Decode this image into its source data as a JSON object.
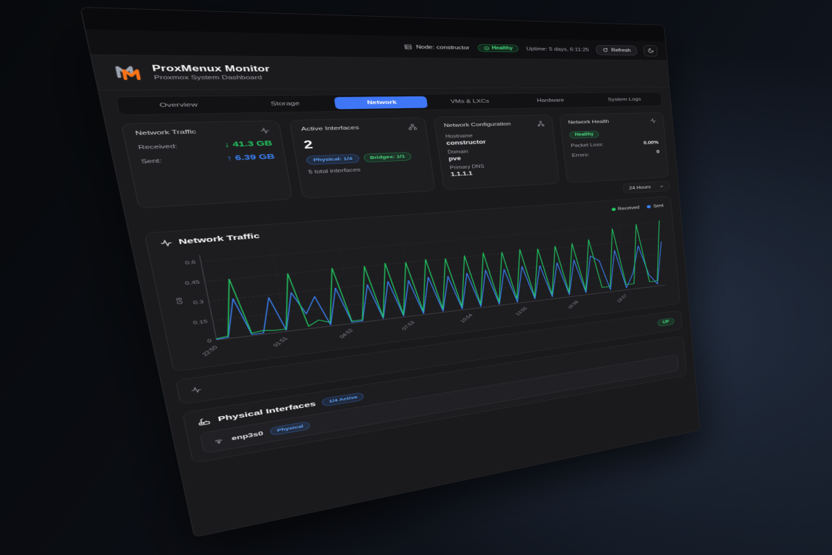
{
  "topbar": {
    "node_label": "Node: constructor",
    "health_badge": "Healthy",
    "uptime": "Uptime: 5 days, 6:11:25",
    "refresh_label": "Refresh"
  },
  "header": {
    "title": "ProxMenux Monitor",
    "subtitle": "Proxmox System Dashboard"
  },
  "tabs": [
    {
      "label": "Overview",
      "active": false
    },
    {
      "label": "Storage",
      "active": false
    },
    {
      "label": "Network",
      "active": true
    },
    {
      "label": "VMs & LXCs",
      "active": false
    },
    {
      "label": "Hardware",
      "active": false
    },
    {
      "label": "System Logs",
      "active": false
    }
  ],
  "cards": {
    "traffic": {
      "title": "Network Traffic",
      "received_label": "Received:",
      "received_value": "↓ 41.3 GB",
      "sent_label": "Sent:",
      "sent_value": "↑ 6.39 GB"
    },
    "interfaces": {
      "title": "Active Interfaces",
      "count": "2",
      "physical_badge": "Physical: 1/4",
      "bridges_badge": "Bridges: 1/1",
      "total": "5 total interfaces"
    },
    "config": {
      "title": "Network Configuration",
      "hostname_label": "Hostname",
      "hostname": "constructor",
      "domain_label": "Domain",
      "domain": "pve",
      "dns_label": "Primary DNS",
      "dns": "1.1.1.1"
    },
    "health": {
      "title": "Network Health",
      "status": "Healthy",
      "packet_loss_label": "Packet Loss:",
      "packet_loss": "0.00%",
      "errors_label": "Errors:",
      "errors": "0"
    }
  },
  "time_range": {
    "selected": "24 Hours"
  },
  "chart": {
    "title": "Network Traffic",
    "legend": [
      {
        "label": "Received",
        "color": "#22c55e"
      },
      {
        "label": "Sent",
        "color": "#3b82f6"
      }
    ]
  },
  "chart_data": {
    "type": "line",
    "title": "Network Traffic",
    "ylabel": "GB",
    "ylim": [
      0,
      0.6
    ],
    "yticks": [
      0,
      0.15,
      0.3,
      0.45,
      0.6
    ],
    "ytick_labels": [
      "0",
      "0.15",
      "0.3",
      "0.45",
      "0.6"
    ],
    "x_tick_labels": [
      "22:50",
      "01:51",
      "04:52",
      "07:53",
      "10:54",
      "13:55",
      "16:56",
      "19:57"
    ],
    "tick_every": 6,
    "grid": true,
    "legend_position": "top-right",
    "series": [
      {
        "name": "Received",
        "color": "#22c55e",
        "values": [
          0.01,
          0.02,
          0.45,
          0.02,
          0.03,
          0.02,
          0.02,
          0.45,
          0.02,
          0.06,
          0.03,
          0.46,
          0.02,
          0.02,
          0.45,
          0.02,
          0.46,
          0.02,
          0.45,
          0.03,
          0.46,
          0.03,
          0.45,
          0.03,
          0.46,
          0.03,
          0.47,
          0.03,
          0.46,
          0.04,
          0.47,
          0.04,
          0.46,
          0.04,
          0.47,
          0.04,
          0.48,
          0.04,
          0.5,
          0.05,
          0.05,
          0.58,
          0.05,
          0.05,
          0.6,
          0.05,
          0.05,
          0.62
        ]
      },
      {
        "name": "Sent",
        "color": "#3b82f6",
        "values": [
          0.005,
          0.01,
          0.3,
          0.01,
          0.01,
          0.28,
          0.01,
          0.3,
          0.12,
          0.25,
          0.01,
          0.3,
          0.01,
          0.01,
          0.3,
          0.01,
          0.31,
          0.01,
          0.3,
          0.01,
          0.31,
          0.01,
          0.3,
          0.01,
          0.31,
          0.01,
          0.32,
          0.01,
          0.31,
          0.01,
          0.32,
          0.02,
          0.31,
          0.02,
          0.32,
          0.02,
          0.33,
          0.02,
          0.35,
          0.3,
          0.02,
          0.38,
          0.02,
          0.15,
          0.4,
          0.12,
          0.02,
          0.42
        ]
      }
    ]
  },
  "status_row": {
    "up_badge": "UP"
  },
  "physical": {
    "title": "Physical Interfaces",
    "active_badge": "1/4 Active",
    "rows": [
      {
        "name": "enp3s0",
        "badge": "Physical"
      }
    ]
  }
}
